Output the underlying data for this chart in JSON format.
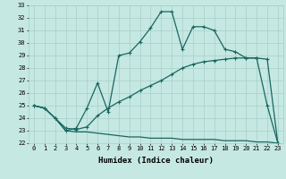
{
  "xlabel": "Humidex (Indice chaleur)",
  "bg_color": "#c5e8e2",
  "grid_color": "#a8cfc8",
  "line_color": "#1a6660",
  "xlim": [
    -0.5,
    23.5
  ],
  "ylim": [
    22,
    33
  ],
  "xticks": [
    0,
    1,
    2,
    3,
    4,
    5,
    6,
    7,
    8,
    9,
    10,
    11,
    12,
    13,
    14,
    15,
    16,
    17,
    18,
    19,
    20,
    21,
    22,
    23
  ],
  "yticks": [
    22,
    23,
    24,
    25,
    26,
    27,
    28,
    29,
    30,
    31,
    32,
    33
  ],
  "line1_x": [
    0,
    1,
    2,
    3,
    4,
    5,
    6,
    7,
    8,
    9,
    10,
    11,
    12,
    13,
    14,
    15,
    16,
    17,
    18,
    19,
    20,
    21,
    22,
    23
  ],
  "line1_y": [
    25.0,
    24.8,
    24.0,
    23.0,
    22.9,
    22.9,
    22.8,
    22.7,
    22.6,
    22.5,
    22.5,
    22.4,
    22.4,
    22.4,
    22.3,
    22.3,
    22.3,
    22.3,
    22.2,
    22.2,
    22.2,
    22.1,
    22.1,
    22.0
  ],
  "line2_x": [
    0,
    1,
    2,
    3,
    4,
    5,
    6,
    7,
    8,
    9,
    10,
    11,
    12,
    13,
    14,
    15,
    16,
    17,
    18,
    19,
    20,
    21,
    22,
    23
  ],
  "line2_y": [
    25.0,
    24.8,
    24.0,
    23.2,
    23.1,
    23.3,
    24.2,
    24.8,
    25.3,
    25.7,
    26.2,
    26.6,
    27.0,
    27.5,
    28.0,
    28.3,
    28.5,
    28.6,
    28.7,
    28.8,
    28.8,
    28.8,
    28.7,
    22.0
  ],
  "line3_x": [
    0,
    1,
    2,
    3,
    4,
    5,
    6,
    7,
    8,
    9,
    10,
    11,
    12,
    13,
    14,
    15,
    16,
    17,
    18,
    19,
    20,
    21,
    22,
    23
  ],
  "line3_y": [
    25.0,
    24.8,
    24.0,
    23.0,
    23.2,
    24.8,
    26.8,
    24.5,
    29.0,
    29.2,
    30.1,
    31.2,
    32.5,
    32.5,
    29.5,
    31.3,
    31.3,
    31.0,
    29.5,
    29.3,
    28.8,
    28.8,
    25.0,
    22.0
  ],
  "marker": "+",
  "markersize": 3,
  "linewidth": 0.9,
  "tick_fontsize": 5,
  "xlabel_fontsize": 6.5
}
